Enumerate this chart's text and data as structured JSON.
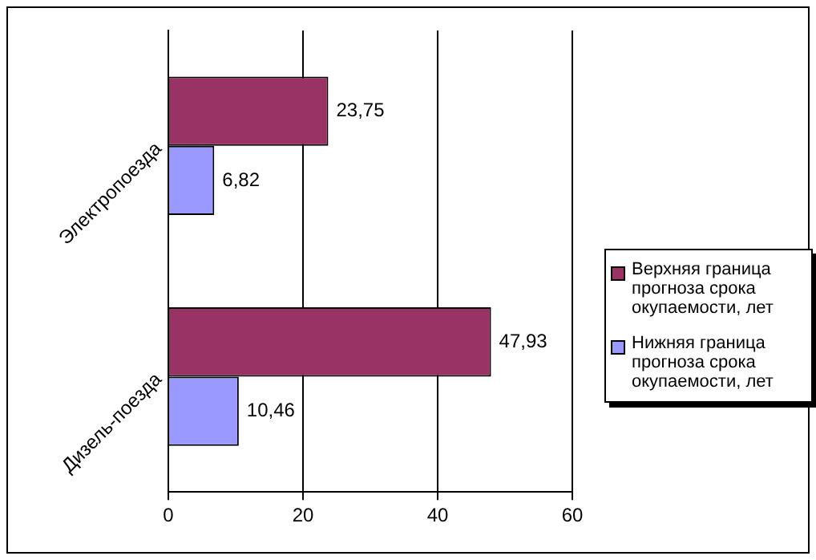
{
  "chart_data": {
    "type": "bar",
    "orientation": "horizontal",
    "categories": [
      "Электропоезда",
      "Дизель-поезда"
    ],
    "series": [
      {
        "name": "Верхняя граница прогноза срока окупаемости, лет",
        "color": "#993366",
        "values": [
          23.75,
          47.93
        ],
        "value_labels": [
          "23,75",
          "47,93"
        ]
      },
      {
        "name": "Нижняя граница прогноза срока окупаемости, лет",
        "color": "#9999ff",
        "values": [
          6.82,
          10.46
        ],
        "value_labels": [
          "6,82",
          "10,46"
        ]
      }
    ],
    "xlim": [
      0,
      60
    ],
    "xticks": [
      0,
      20,
      40,
      60
    ],
    "grid": "x",
    "legend": "right"
  }
}
